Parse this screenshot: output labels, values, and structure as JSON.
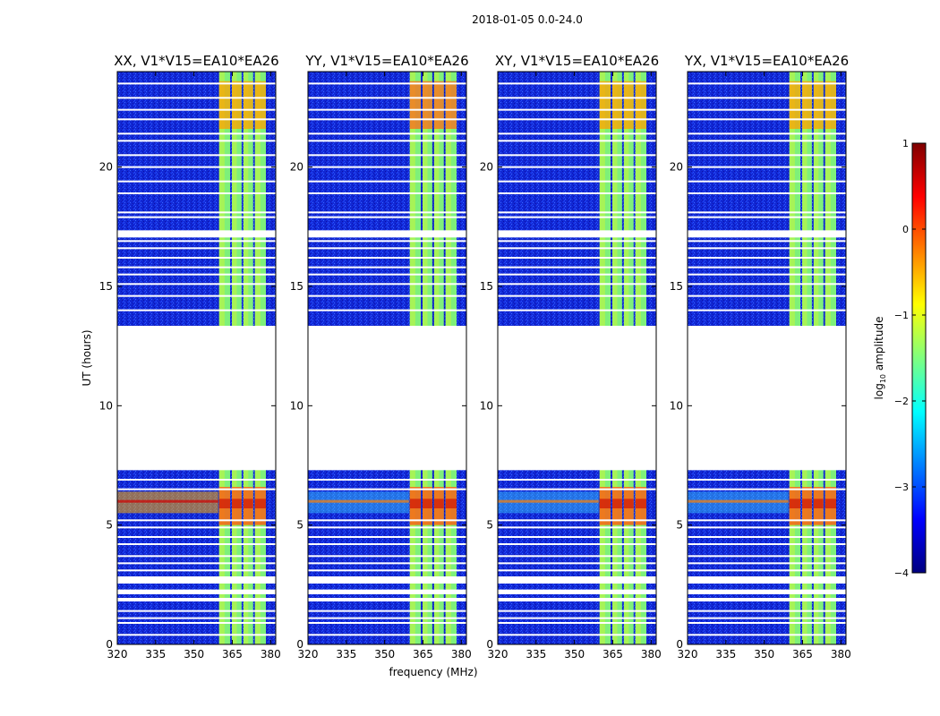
{
  "chart_data": {
    "type": "heatmap",
    "suptitle": "2018-01-05 0.0-24.0",
    "xlabel": "frequency (MHz)",
    "ylabel": "UT (hours)",
    "xlim": [
      320,
      382
    ],
    "ylim": [
      0,
      24
    ],
    "xticks": [
      320,
      335,
      350,
      365,
      380
    ],
    "yticks": [
      0,
      5,
      10,
      15,
      20
    ],
    "panels": [
      {
        "title": "XX, V1*V15=EA10*EA26"
      },
      {
        "title": "YY, V1*V15=EA10*EA26"
      },
      {
        "title": "XY, V1*V15=EA10*EA26"
      },
      {
        "title": "YX, V1*V15=EA10*EA26"
      }
    ],
    "no_data_hours": [
      [
        13.35,
        7.3
      ],
      [
        17.35,
        17.05
      ],
      [
        2.85,
        2.55
      ],
      [
        2.3,
        2.1
      ],
      [
        1.95,
        1.8
      ]
    ],
    "flagged_lines_hours": [
      0.4,
      0.9,
      1.1,
      1.4,
      3.1,
      3.4,
      3.7,
      4.2,
      4.5,
      4.9,
      5.2,
      6.5,
      6.9,
      14.0,
      14.6,
      15.1,
      15.5,
      15.8,
      16.2,
      16.6,
      16.9,
      17.9,
      18.1,
      18.9,
      19.4,
      20.0,
      20.5,
      21.1,
      21.4,
      22.0,
      22.4,
      22.9,
      23.5
    ],
    "bright_band_mhz": [
      359.5,
      378.5
    ],
    "band_subchannel_starts_mhz": [
      359.5,
      364.5,
      369.0,
      373.5
    ],
    "colorbar": {
      "label": "log",
      "label_sub": "10",
      "label_rest": " amplitude",
      "min": -4,
      "max": 1,
      "ticks": [
        "1",
        "0",
        "−1",
        "−2",
        "−3",
        "−4"
      ],
      "tick_values": [
        1,
        0,
        -1,
        -2,
        -3,
        -4
      ],
      "colors": [
        "#00007f",
        "#0000ff",
        "#007fff",
        "#00ffff",
        "#7fff7f",
        "#ffff00",
        "#ff7f00",
        "#ff0000",
        "#7f0000"
      ]
    }
  }
}
